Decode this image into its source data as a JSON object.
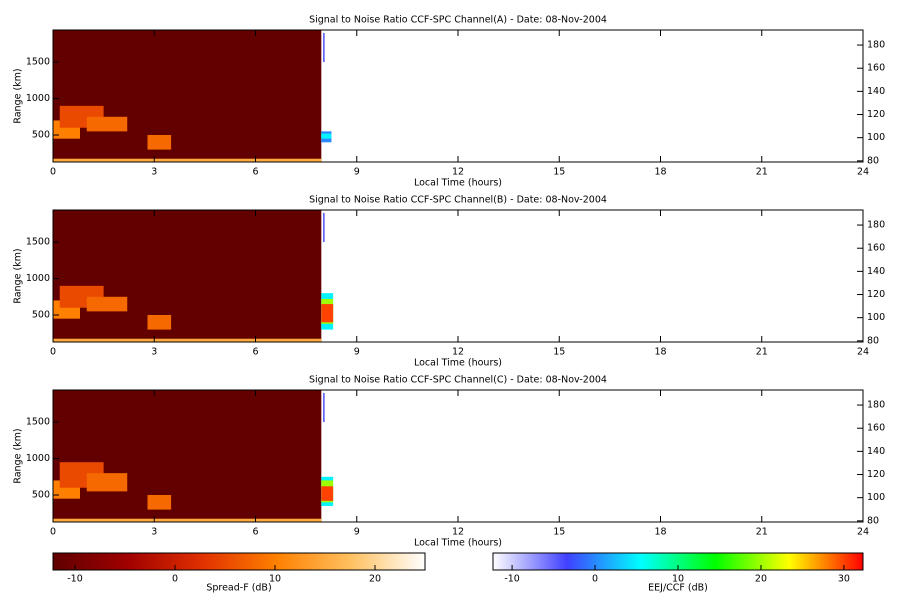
{
  "chart_data": [
    {
      "type": "heatmap",
      "title": "Signal to Noise Ratio CCF-SPC Channel(A) - Date: 08-Nov-2004",
      "xlabel": "Local Time (hours)",
      "ylabel": "Range (km)",
      "xlim": [
        0,
        24
      ],
      "xticks": [
        0,
        3,
        6,
        9,
        12,
        15,
        18,
        21,
        24
      ],
      "ylim": [
        130,
        1940
      ],
      "yticks": [
        500,
        1000,
        1500
      ],
      "y2lim": [
        79,
        193
      ],
      "y2ticks": [
        80,
        100,
        120,
        140,
        160,
        180
      ],
      "spread_f": [
        {
          "x": [
            0,
            7.95
          ],
          "y": [
            130,
            1940
          ],
          "value": -12
        },
        {
          "x": [
            0,
            7.95
          ],
          "y": [
            130,
            175
          ],
          "value": 15
        },
        {
          "x": [
            0,
            0.8
          ],
          "y": [
            450,
            700
          ],
          "value": 10
        },
        {
          "x": [
            0.2,
            1.5
          ],
          "y": [
            600,
            900
          ],
          "value": 5
        },
        {
          "x": [
            1.0,
            2.2
          ],
          "y": [
            550,
            750
          ],
          "value": 8
        },
        {
          "x": [
            2.8,
            3.5
          ],
          "y": [
            300,
            500
          ],
          "value": 8
        }
      ],
      "eej_ccf": [
        {
          "x": [
            8.0,
            8.05
          ],
          "y": [
            1500,
            1900
          ],
          "value": -5
        },
        {
          "x": [
            7.95,
            8.25
          ],
          "y": [
            400,
            550
          ],
          "value": 0
        },
        {
          "x": [
            7.95,
            8.25
          ],
          "y": [
            450,
            520
          ],
          "value": 5
        }
      ]
    },
    {
      "type": "heatmap",
      "title": "Signal to Noise Ratio CCF-SPC Channel(B) - Date: 08-Nov-2004",
      "xlabel": "Local Time (hours)",
      "ylabel": "Range (km)",
      "xlim": [
        0,
        24
      ],
      "xticks": [
        0,
        3,
        6,
        9,
        12,
        15,
        18,
        21,
        24
      ],
      "ylim": [
        130,
        1940
      ],
      "yticks": [
        500,
        1000,
        1500
      ],
      "y2lim": [
        79,
        193
      ],
      "y2ticks": [
        80,
        100,
        120,
        140,
        160,
        180
      ],
      "spread_f": [
        {
          "x": [
            0,
            7.95
          ],
          "y": [
            130,
            1940
          ],
          "value": -12
        },
        {
          "x": [
            0,
            7.95
          ],
          "y": [
            130,
            175
          ],
          "value": 15
        },
        {
          "x": [
            0,
            0.8
          ],
          "y": [
            450,
            700
          ],
          "value": 10
        },
        {
          "x": [
            0.2,
            1.5
          ],
          "y": [
            600,
            900
          ],
          "value": 5
        },
        {
          "x": [
            1.0,
            2.2
          ],
          "y": [
            550,
            750
          ],
          "value": 8
        },
        {
          "x": [
            2.8,
            3.5
          ],
          "y": [
            300,
            500
          ],
          "value": 8
        }
      ],
      "eej_ccf": [
        {
          "x": [
            8.0,
            8.05
          ],
          "y": [
            1500,
            1900
          ],
          "value": -5
        },
        {
          "x": [
            7.95,
            8.3
          ],
          "y": [
            300,
            800
          ],
          "value": 5
        },
        {
          "x": [
            7.95,
            8.3
          ],
          "y": [
            380,
            720
          ],
          "value": 20
        },
        {
          "x": [
            7.95,
            8.3
          ],
          "y": [
            400,
            650
          ],
          "value": 30
        }
      ]
    },
    {
      "type": "heatmap",
      "title": "Signal to Noise Ratio CCF-SPC Channel(C) - Date: 08-Nov-2004",
      "xlabel": "Local Time (hours)",
      "ylabel": "Range (km)",
      "xlim": [
        0,
        24
      ],
      "xticks": [
        0,
        3,
        6,
        9,
        12,
        15,
        18,
        21,
        24
      ],
      "ylim": [
        130,
        1940
      ],
      "yticks": [
        500,
        1000,
        1500
      ],
      "y2lim": [
        79,
        193
      ],
      "y2ticks": [
        80,
        100,
        120,
        140,
        160,
        180
      ],
      "spread_f": [
        {
          "x": [
            0,
            7.95
          ],
          "y": [
            130,
            1940
          ],
          "value": -12
        },
        {
          "x": [
            0,
            7.95
          ],
          "y": [
            130,
            175
          ],
          "value": 15
        },
        {
          "x": [
            0,
            0.8
          ],
          "y": [
            450,
            700
          ],
          "value": 10
        },
        {
          "x": [
            0.2,
            1.5
          ],
          "y": [
            600,
            950
          ],
          "value": 5
        },
        {
          "x": [
            1.0,
            2.2
          ],
          "y": [
            550,
            800
          ],
          "value": 8
        },
        {
          "x": [
            2.8,
            3.5
          ],
          "y": [
            300,
            500
          ],
          "value": 8
        }
      ],
      "eej_ccf": [
        {
          "x": [
            8.0,
            8.05
          ],
          "y": [
            1500,
            1900
          ],
          "value": -5
        },
        {
          "x": [
            7.95,
            8.3
          ],
          "y": [
            350,
            750
          ],
          "value": 5
        },
        {
          "x": [
            7.95,
            8.3
          ],
          "y": [
            400,
            700
          ],
          "value": 20
        },
        {
          "x": [
            7.95,
            8.3
          ],
          "y": [
            420,
            620
          ],
          "value": 30
        }
      ]
    },
    {
      "type": "colorbar",
      "label": "Spread-F (dB)",
      "lim": [
        -12.2,
        25
      ],
      "ticks": [
        -10,
        0,
        10,
        20
      ],
      "colors": [
        "#600000",
        "#a00000",
        "#e03000",
        "#ff8000",
        "#ffc060",
        "#ffffff"
      ]
    },
    {
      "type": "colorbar",
      "label": "EEJ/CCF (dB)",
      "lim": [
        -12.3,
        32.3
      ],
      "ticks": [
        -10,
        0,
        10,
        20,
        30
      ],
      "colors": [
        "#ffffff",
        "#4040ff",
        "#00ffff",
        "#00ff00",
        "#ffff00",
        "#ff0000"
      ]
    }
  ]
}
